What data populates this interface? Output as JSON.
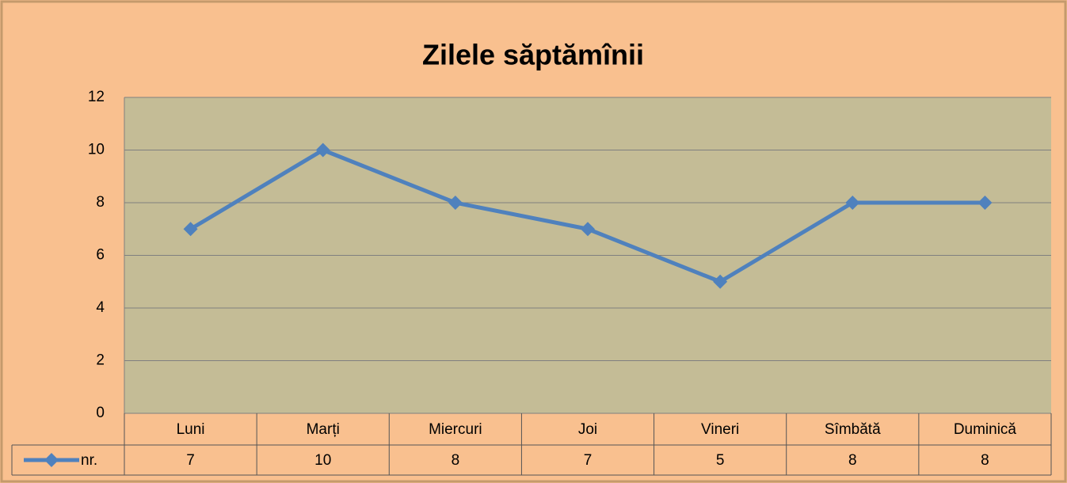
{
  "chart_data": {
    "type": "line",
    "title": "Zilele săptămînii",
    "categories": [
      "Luni",
      "Marți",
      "Miercuri",
      "Joi",
      "Vineri",
      "Sîmbătă",
      "Duminică"
    ],
    "series": [
      {
        "name": "nr.",
        "color": "#4f81bd",
        "values": [
          7,
          10,
          8,
          7,
          5,
          8,
          8
        ]
      }
    ],
    "ylim": [
      0,
      12
    ],
    "yticks": [
      0,
      2,
      4,
      6,
      8,
      10,
      12
    ],
    "grid": true
  }
}
